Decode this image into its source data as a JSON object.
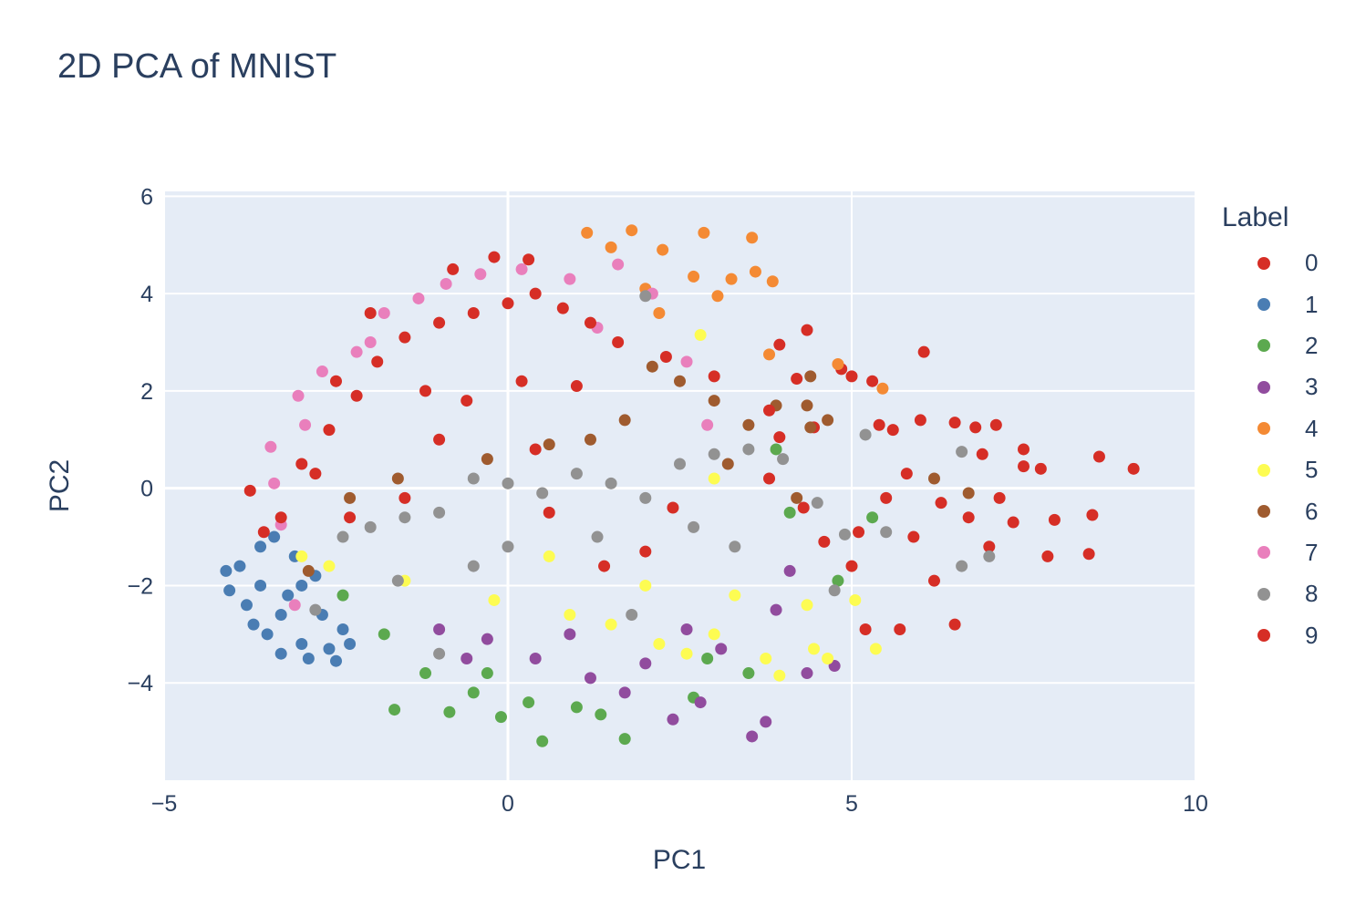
{
  "chart_data": {
    "type": "scatter",
    "title": "2D PCA of MNIST",
    "xlabel": "PC1",
    "ylabel": "PC2",
    "xlim": [
      -5,
      10
    ],
    "ylim": [
      -6,
      6.1
    ],
    "xticks": [
      -5,
      0,
      5,
      10
    ],
    "xtick_labels": [
      "−5",
      "0",
      "5",
      "10"
    ],
    "yticks": [
      -4,
      -2,
      0,
      2,
      4,
      6
    ],
    "ytick_labels": [
      "−4",
      "−2",
      "0",
      "2",
      "4",
      "6"
    ],
    "grid": true,
    "legend_title": "Label",
    "legend_position": "right",
    "series": [
      {
        "name": "0",
        "color": "#d62e26",
        "points": [
          [
            9.1,
            0.4
          ],
          [
            8.6,
            0.65
          ],
          [
            8.5,
            -0.55
          ],
          [
            8.45,
            -1.35
          ],
          [
            7.85,
            -1.4
          ],
          [
            7.95,
            -0.65
          ],
          [
            7.75,
            0.4
          ],
          [
            7.5,
            0.8
          ],
          [
            7.5,
            0.45
          ],
          [
            7.35,
            -0.7
          ],
          [
            7.15,
            -0.2
          ],
          [
            7.1,
            1.3
          ],
          [
            6.8,
            1.25
          ],
          [
            6.5,
            1.35
          ],
          [
            6.05,
            2.8
          ],
          [
            5.7,
            -2.9
          ],
          [
            6.5,
            -2.8
          ],
          [
            6.0,
            1.4
          ],
          [
            5.6,
            1.2
          ],
          [
            5.3,
            2.2
          ],
          [
            5.4,
            1.3
          ],
          [
            5.0,
            2.3
          ],
          [
            4.85,
            2.45
          ],
          [
            4.45,
            1.25
          ],
          [
            4.35,
            3.25
          ],
          [
            4.2,
            2.25
          ],
          [
            3.95,
            2.95
          ],
          [
            3.95,
            1.05
          ],
          [
            5.2,
            -2.9
          ],
          [
            5.0,
            -1.6
          ],
          [
            5.9,
            -1.0
          ],
          [
            6.3,
            -0.3
          ],
          [
            6.7,
            -0.6
          ],
          [
            5.8,
            0.3
          ],
          [
            5.5,
            -0.2
          ],
          [
            7.0,
            -1.2
          ],
          [
            6.9,
            0.7
          ],
          [
            6.2,
            -1.9
          ],
          [
            5.1,
            -0.9
          ],
          [
            4.6,
            -1.1
          ],
          [
            4.3,
            -0.4
          ],
          [
            3.8,
            0.2
          ]
        ]
      },
      {
        "name": "1",
        "color": "#4a7db3",
        "points": [
          [
            -4.1,
            -1.7
          ],
          [
            -4.05,
            -2.1
          ],
          [
            -3.9,
            -1.6
          ],
          [
            -3.8,
            -2.4
          ],
          [
            -3.7,
            -2.8
          ],
          [
            -3.6,
            -1.2
          ],
          [
            -3.5,
            -3.0
          ],
          [
            -3.4,
            -1.0
          ],
          [
            -3.3,
            -3.4
          ],
          [
            -3.2,
            -2.2
          ],
          [
            -3.1,
            -1.4
          ],
          [
            -3.0,
            -3.2
          ],
          [
            -2.9,
            -3.5
          ],
          [
            -2.8,
            -1.8
          ],
          [
            -2.7,
            -2.6
          ],
          [
            -2.6,
            -3.3
          ],
          [
            -2.5,
            -3.55
          ],
          [
            -2.4,
            -2.9
          ],
          [
            -2.3,
            -3.2
          ],
          [
            -3.6,
            -2.0
          ],
          [
            -3.3,
            -2.6
          ],
          [
            -3.0,
            -2.0
          ]
        ]
      },
      {
        "name": "2",
        "color": "#5ca94f",
        "points": [
          [
            -1.65,
            -4.55
          ],
          [
            -0.85,
            -4.6
          ],
          [
            -0.1,
            -4.7
          ],
          [
            0.5,
            -5.2
          ],
          [
            1.7,
            -5.15
          ],
          [
            1.35,
            -4.65
          ],
          [
            -1.2,
            -3.8
          ],
          [
            -0.5,
            -4.2
          ],
          [
            0.3,
            -4.4
          ],
          [
            1.0,
            -4.5
          ],
          [
            2.7,
            -4.3
          ],
          [
            2.9,
            -3.5
          ],
          [
            3.5,
            -3.8
          ],
          [
            4.1,
            -0.5
          ],
          [
            4.8,
            -1.9
          ],
          [
            5.3,
            -0.6
          ],
          [
            -2.4,
            -2.2
          ],
          [
            -1.8,
            -3.0
          ],
          [
            -0.3,
            -3.8
          ],
          [
            3.9,
            0.8
          ]
        ]
      },
      {
        "name": "3",
        "color": "#914c9e",
        "points": [
          [
            3.55,
            -5.1
          ],
          [
            3.75,
            -4.8
          ],
          [
            4.35,
            -3.8
          ],
          [
            4.75,
            -3.65
          ],
          [
            2.4,
            -4.75
          ],
          [
            2.8,
            -4.4
          ],
          [
            1.7,
            -4.2
          ],
          [
            1.2,
            -3.9
          ],
          [
            0.4,
            -3.5
          ],
          [
            -0.3,
            -3.1
          ],
          [
            -1.0,
            -2.9
          ],
          [
            2.0,
            -3.6
          ],
          [
            3.1,
            -3.3
          ],
          [
            3.9,
            -2.5
          ],
          [
            4.1,
            -1.7
          ],
          [
            2.6,
            -2.9
          ],
          [
            -0.6,
            -3.5
          ],
          [
            0.9,
            -3.0
          ]
        ]
      },
      {
        "name": "4",
        "color": "#f48a34",
        "points": [
          [
            1.15,
            5.25
          ],
          [
            1.8,
            5.3
          ],
          [
            2.85,
            5.25
          ],
          [
            3.55,
            5.15
          ],
          [
            3.6,
            4.45
          ],
          [
            3.85,
            4.25
          ],
          [
            3.25,
            4.3
          ],
          [
            3.05,
            3.95
          ],
          [
            2.7,
            4.35
          ],
          [
            2.25,
            4.9
          ],
          [
            1.5,
            4.95
          ],
          [
            3.8,
            2.75
          ],
          [
            4.8,
            2.55
          ],
          [
            5.45,
            2.05
          ],
          [
            2.2,
            3.6
          ],
          [
            2.0,
            4.1
          ]
        ]
      },
      {
        "name": "5",
        "color": "#fdfc52",
        "points": [
          [
            3.95,
            -3.85
          ],
          [
            4.45,
            -3.3
          ],
          [
            4.65,
            -3.5
          ],
          [
            5.35,
            -3.3
          ],
          [
            5.05,
            -2.3
          ],
          [
            4.35,
            -2.4
          ],
          [
            3.75,
            -3.5
          ],
          [
            3.0,
            -3.0
          ],
          [
            2.6,
            -3.4
          ],
          [
            2.2,
            -3.2
          ],
          [
            1.5,
            -2.8
          ],
          [
            0.9,
            -2.6
          ],
          [
            -0.2,
            -2.3
          ],
          [
            -1.5,
            -1.9
          ],
          [
            -2.6,
            -1.6
          ],
          [
            -3.0,
            -1.4
          ],
          [
            0.6,
            -1.4
          ],
          [
            2.0,
            -2.0
          ],
          [
            3.3,
            -2.2
          ],
          [
            3.0,
            0.2
          ],
          [
            2.8,
            3.15
          ]
        ]
      },
      {
        "name": "6",
        "color": "#9f5b2f",
        "points": [
          [
            4.4,
            2.3
          ],
          [
            4.35,
            1.7
          ],
          [
            4.4,
            1.25
          ],
          [
            4.65,
            1.4
          ],
          [
            3.9,
            1.7
          ],
          [
            3.5,
            1.3
          ],
          [
            3.0,
            1.8
          ],
          [
            2.5,
            2.2
          ],
          [
            2.1,
            2.5
          ],
          [
            1.7,
            1.4
          ],
          [
            1.2,
            1.0
          ],
          [
            0.6,
            0.9
          ],
          [
            -0.3,
            0.6
          ],
          [
            -1.6,
            0.2
          ],
          [
            -2.3,
            -0.2
          ],
          [
            -2.9,
            -1.7
          ],
          [
            6.7,
            -0.1
          ],
          [
            6.2,
            0.2
          ],
          [
            4.2,
            -0.2
          ],
          [
            3.2,
            0.5
          ]
        ]
      },
      {
        "name": "7",
        "color": "#e97fbc",
        "points": [
          [
            -3.05,
            1.9
          ],
          [
            -2.95,
            1.3
          ],
          [
            -3.45,
            0.85
          ],
          [
            -3.4,
            0.1
          ],
          [
            -3.3,
            -0.75
          ],
          [
            -3.1,
            -2.4
          ],
          [
            -2.2,
            2.8
          ],
          [
            -1.8,
            3.6
          ],
          [
            -1.3,
            3.9
          ],
          [
            -0.9,
            4.2
          ],
          [
            -0.4,
            4.4
          ],
          [
            0.2,
            4.5
          ],
          [
            0.9,
            4.3
          ],
          [
            1.6,
            4.6
          ],
          [
            2.1,
            4.0
          ],
          [
            2.6,
            2.6
          ],
          [
            1.3,
            3.3
          ],
          [
            2.9,
            1.3
          ],
          [
            -2.7,
            2.4
          ],
          [
            -2.0,
            3.0
          ]
        ]
      },
      {
        "name": "8",
        "color": "#929292",
        "points": [
          [
            -2.8,
            -2.5
          ],
          [
            -2.4,
            -1.0
          ],
          [
            -2.0,
            -0.8
          ],
          [
            -1.5,
            -0.6
          ],
          [
            -1.0,
            -0.5
          ],
          [
            -0.5,
            0.2
          ],
          [
            0.0,
            0.1
          ],
          [
            0.5,
            -0.1
          ],
          [
            1.0,
            0.3
          ],
          [
            1.5,
            0.1
          ],
          [
            2.0,
            -0.2
          ],
          [
            2.5,
            0.5
          ],
          [
            3.0,
            0.7
          ],
          [
            3.5,
            0.8
          ],
          [
            4.0,
            0.6
          ],
          [
            4.5,
            -0.3
          ],
          [
            5.2,
            1.1
          ],
          [
            6.6,
            0.75
          ],
          [
            6.6,
            -1.6
          ],
          [
            7.0,
            -1.4
          ],
          [
            4.9,
            -0.95
          ],
          [
            5.5,
            -0.9
          ],
          [
            4.75,
            -2.1
          ],
          [
            -1.6,
            -1.9
          ],
          [
            0.0,
            -1.2
          ],
          [
            1.3,
            -1.0
          ],
          [
            2.7,
            -0.8
          ],
          [
            2.0,
            3.95
          ],
          [
            -0.5,
            -1.6
          ],
          [
            1.8,
            -2.6
          ],
          [
            3.3,
            -1.2
          ],
          [
            -1.0,
            -3.4
          ]
        ]
      },
      {
        "name": "9",
        "color": "#d62e26",
        "points": [
          [
            -3.75,
            -0.05
          ],
          [
            -3.55,
            -0.9
          ],
          [
            -3.3,
            -0.6
          ],
          [
            -3.0,
            0.5
          ],
          [
            -2.6,
            1.2
          ],
          [
            -2.2,
            1.9
          ],
          [
            -1.9,
            2.6
          ],
          [
            -1.5,
            3.1
          ],
          [
            -1.0,
            3.4
          ],
          [
            -0.5,
            3.6
          ],
          [
            0.0,
            3.8
          ],
          [
            0.4,
            4.0
          ],
          [
            0.8,
            3.7
          ],
          [
            1.2,
            3.4
          ],
          [
            1.6,
            3.0
          ],
          [
            -0.8,
            4.5
          ],
          [
            -0.2,
            4.75
          ],
          [
            0.3,
            4.7
          ],
          [
            -2.0,
            3.6
          ],
          [
            -2.5,
            2.2
          ],
          [
            -1.2,
            2.0
          ],
          [
            -0.6,
            1.8
          ],
          [
            0.2,
            2.2
          ],
          [
            1.0,
            2.1
          ],
          [
            2.3,
            2.7
          ],
          [
            3.0,
            2.3
          ],
          [
            3.8,
            1.6
          ],
          [
            -2.8,
            0.3
          ],
          [
            -2.3,
            -0.6
          ],
          [
            -1.5,
            -0.2
          ],
          [
            0.6,
            -0.5
          ],
          [
            1.4,
            -1.6
          ],
          [
            2.0,
            -1.3
          ],
          [
            2.4,
            -0.4
          ],
          [
            -1.0,
            1.0
          ],
          [
            0.4,
            0.8
          ]
        ]
      }
    ]
  }
}
